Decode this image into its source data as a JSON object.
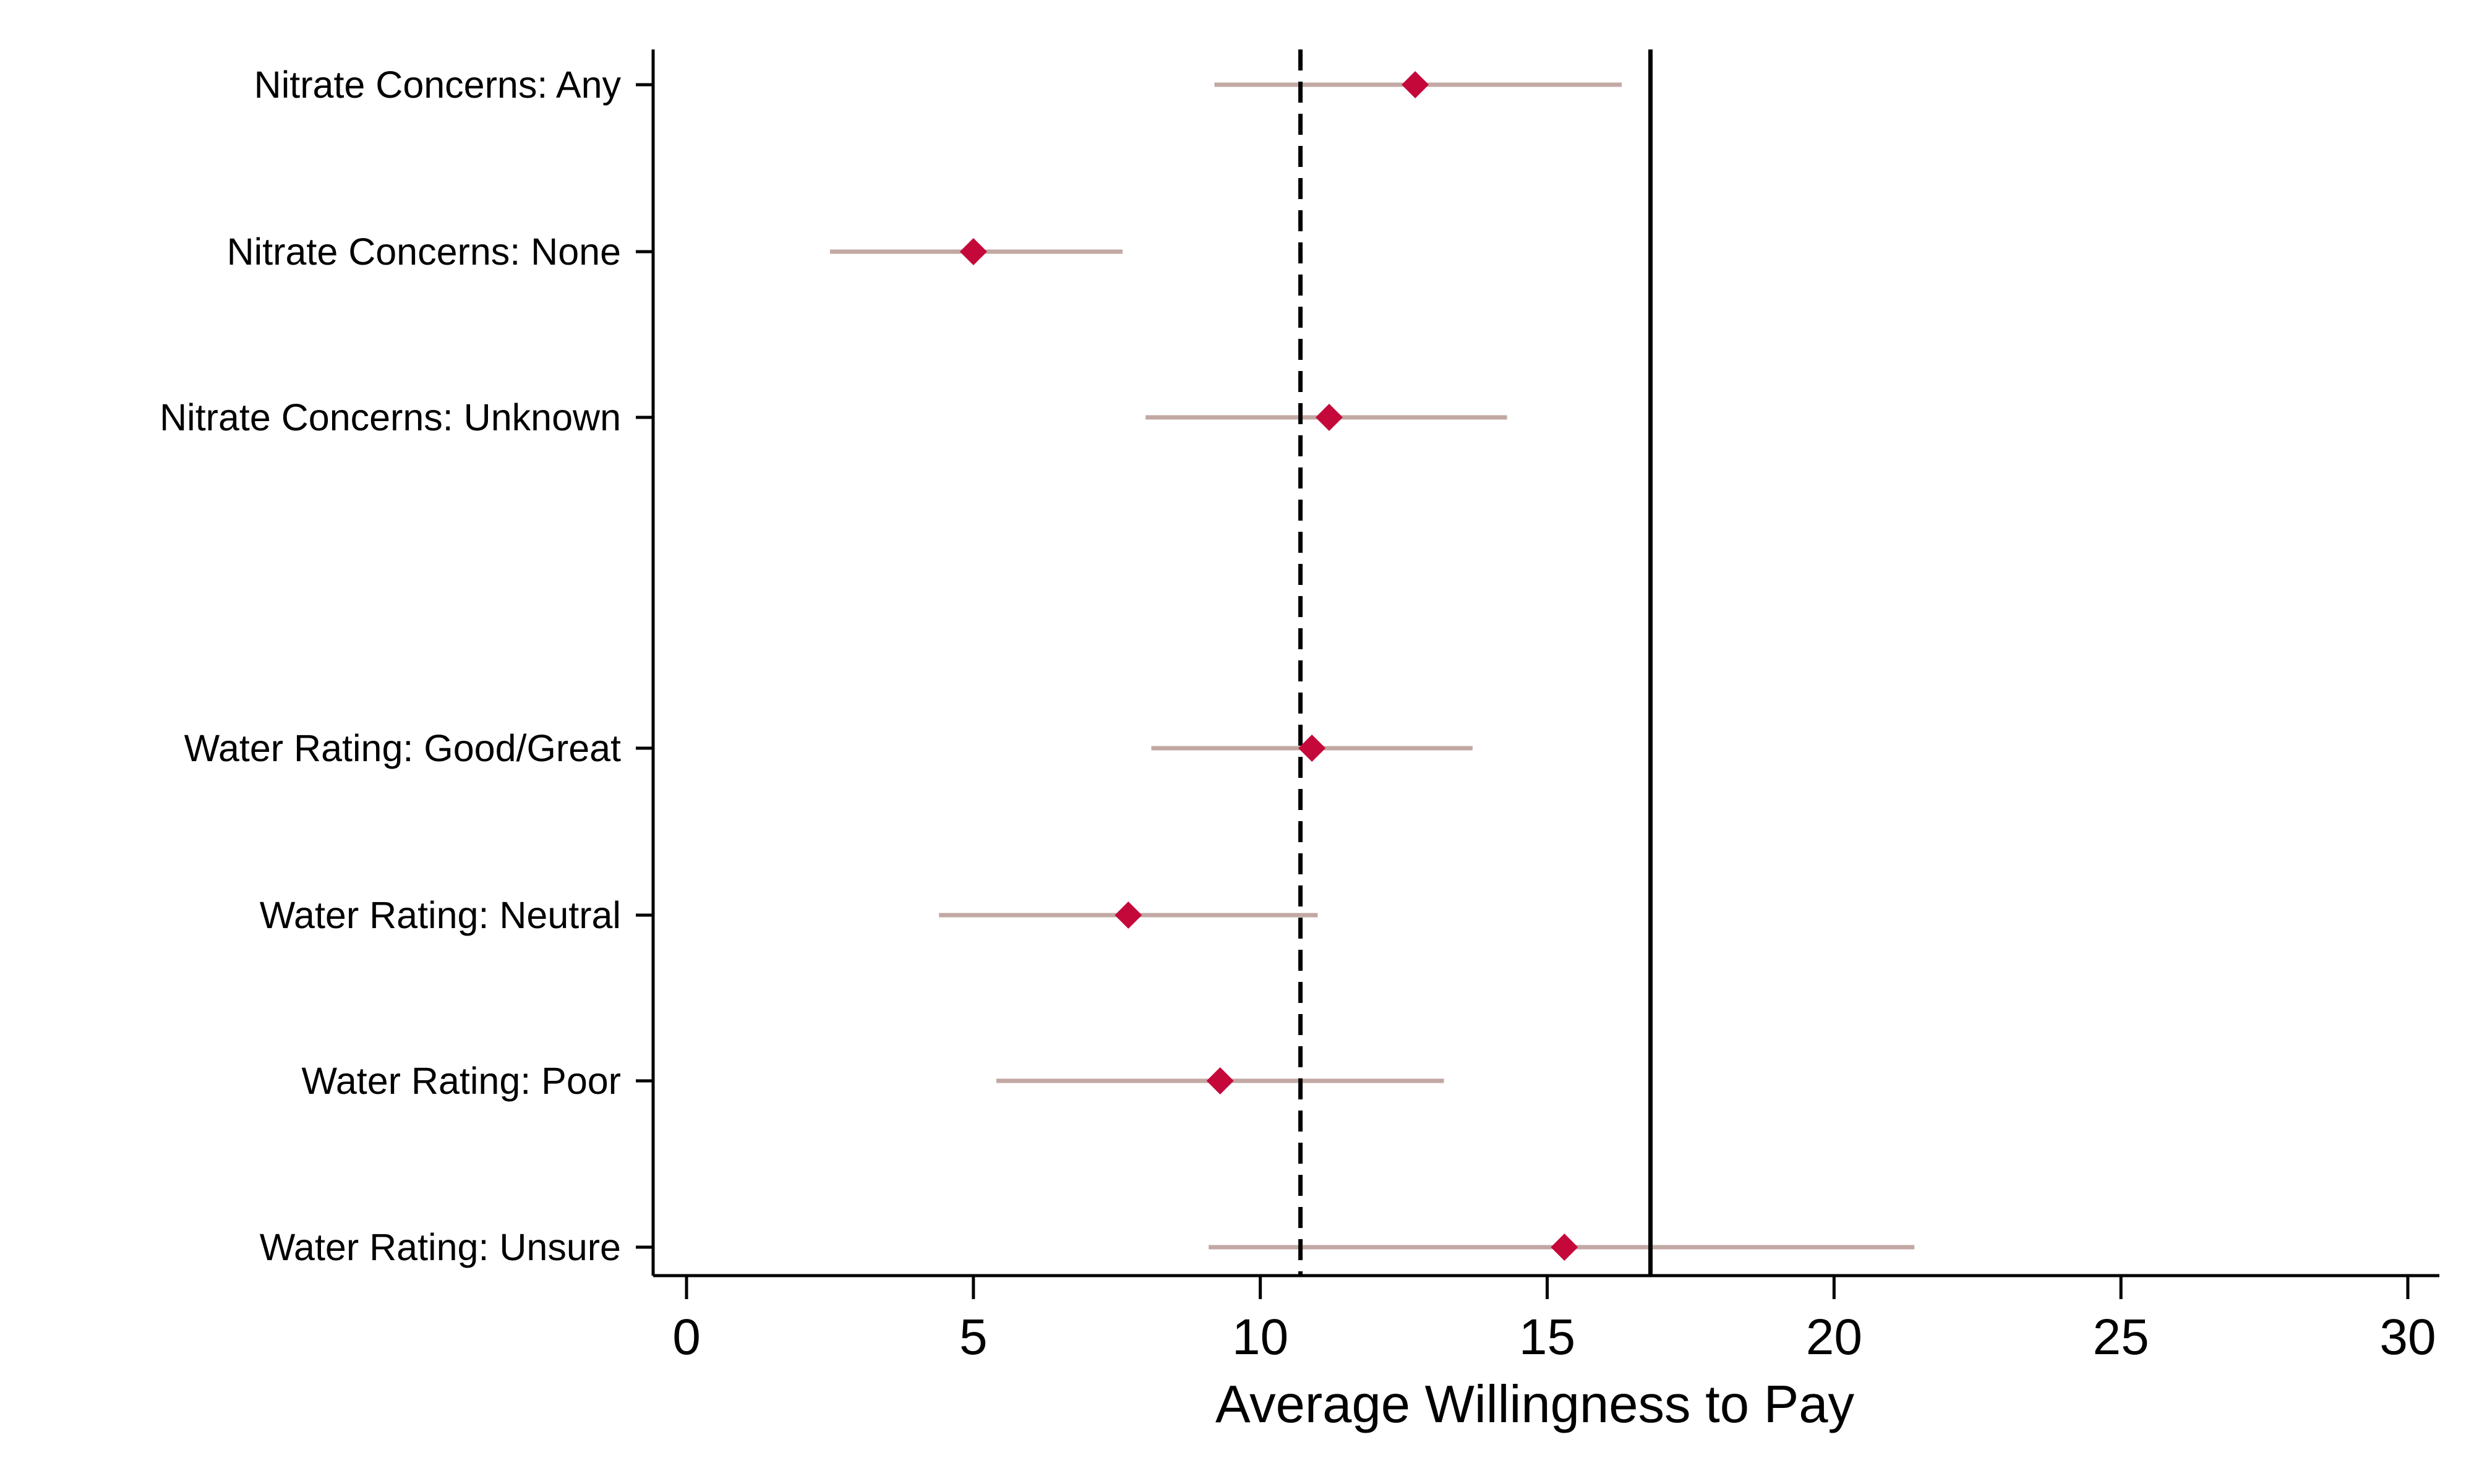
{
  "chart_data": {
    "type": "dot-and-whisker",
    "xlabel": "Average Willingness to Pay",
    "xlim": [
      0,
      30
    ],
    "xticks": [
      0,
      5,
      10,
      15,
      20,
      25,
      30
    ],
    "xtick_labels": [
      "0",
      "5",
      "10",
      "15",
      "20",
      "25",
      "30"
    ],
    "categories": [
      "Nitrate Concerns: Any",
      "Nitrate Concerns: None",
      "Nitrate Concerns: Unknown",
      "Water Rating: Good/Great",
      "Water Rating: Neutral",
      "Water Rating: Poor",
      "Water Rating: Unsure"
    ],
    "estimates": [
      12.7,
      5.0,
      11.2,
      10.9,
      7.7,
      9.3,
      15.3
    ],
    "ci_low": [
      9.2,
      2.5,
      8.0,
      8.1,
      4.4,
      5.4,
      9.1
    ],
    "ci_high": [
      16.3,
      7.6,
      14.3,
      13.7,
      11.0,
      13.2,
      21.4
    ],
    "reference_lines": [
      {
        "value": 10.7,
        "style": "dashed"
      },
      {
        "value": 16.8,
        "style": "solid"
      }
    ],
    "colors": {
      "point": "#C4093A",
      "ci": "#C2A8A4",
      "axis": "#000000"
    },
    "marker": "diamond",
    "grid": false,
    "legend": "none"
  }
}
